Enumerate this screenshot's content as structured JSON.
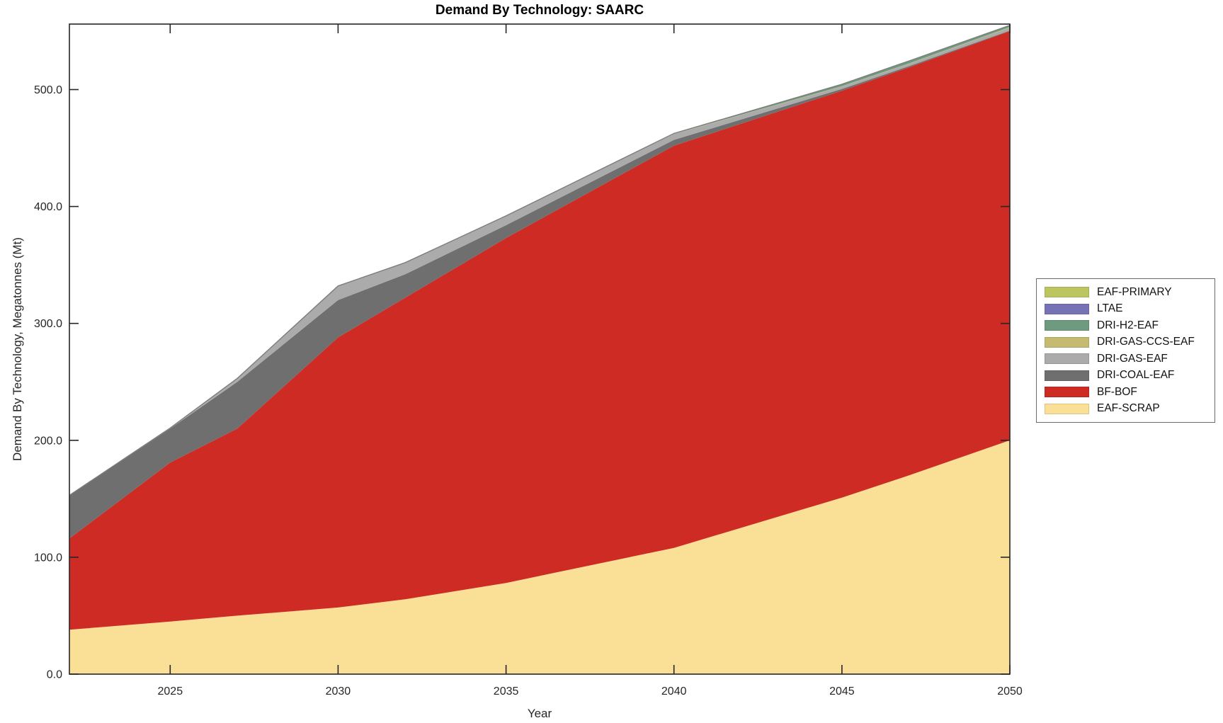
{
  "chart_data": {
    "type": "area",
    "stacked": true,
    "title": "Demand By Technology: SAARC",
    "xlabel": "Year",
    "ylabel": "Demand By Technology, Megatonnes (Mt)",
    "units": "Mt",
    "grid": false,
    "legend_position": "right-outside",
    "xlim": [
      2022,
      2050
    ],
    "ylim": [
      0,
      556
    ],
    "xticks": [
      2025,
      2030,
      2035,
      2040,
      2045,
      2050
    ],
    "xtick_labels": [
      "2025",
      "2030",
      "2035",
      "2040",
      "2045",
      "2050"
    ],
    "yticks": [
      0,
      100,
      200,
      300,
      400,
      500
    ],
    "ytick_labels": [
      "0.0",
      "100.0",
      "200.0",
      "300.0",
      "400.0",
      "500.0"
    ],
    "axis_color": "#262626",
    "top_edge_color": "#7d7d7d",
    "x": [
      2022,
      2025,
      2027,
      2030,
      2032,
      2035,
      2040,
      2045,
      2047,
      2050
    ],
    "series": [
      {
        "name": "EAF-SCRAP",
        "color": "#FAE096",
        "values": [
          38,
          45,
          50,
          57,
          64,
          78,
          108,
          151,
          170,
          200
        ]
      },
      {
        "name": "BF-BOF",
        "color": "#CE2B24",
        "values": [
          78,
          136,
          160,
          231,
          258,
          295,
          344,
          348,
          349,
          350
        ]
      },
      {
        "name": "DRI-COAL-EAF",
        "color": "#6F6F6F",
        "values": [
          37,
          29,
          40,
          32,
          20,
          11,
          5,
          1.5,
          1,
          0.5
        ]
      },
      {
        "name": "DRI-GAS-EAF",
        "color": "#ABABAB",
        "values": [
          0,
          0.5,
          3,
          12,
          10,
          8,
          5,
          2,
          2,
          2.5
        ]
      },
      {
        "name": "DRI-GAS-CCS-EAF",
        "color": "#C5BA70",
        "values": [
          0,
          0,
          0,
          0,
          0,
          0,
          0.2,
          0.3,
          0.3,
          0.4
        ]
      },
      {
        "name": "DRI-H2-EAF",
        "color": "#6E9B80",
        "values": [
          0,
          0,
          0,
          0,
          0,
          0,
          0.3,
          1.8,
          2.2,
          1.5
        ]
      },
      {
        "name": "LTAE",
        "color": "#7672B5",
        "values": [
          0,
          0,
          0,
          0,
          0,
          0,
          0,
          0,
          0,
          0
        ]
      },
      {
        "name": "EAF-PRIMARY",
        "color": "#BDC561",
        "values": [
          0,
          0,
          0,
          0,
          0,
          0,
          0,
          0,
          0,
          0
        ]
      }
    ],
    "legend_order": [
      "EAF-PRIMARY",
      "LTAE",
      "DRI-H2-EAF",
      "DRI-GAS-CCS-EAF",
      "DRI-GAS-EAF",
      "DRI-COAL-EAF",
      "BF-BOF",
      "EAF-SCRAP"
    ]
  }
}
